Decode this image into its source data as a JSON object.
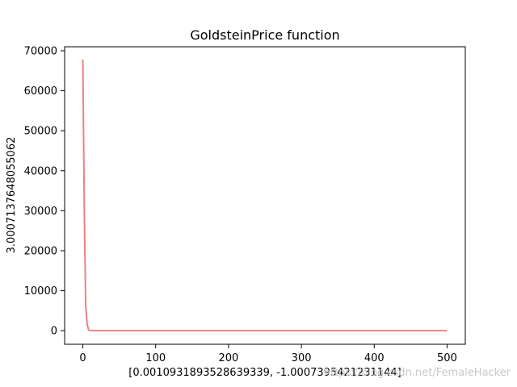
{
  "chart_data": {
    "type": "line",
    "title": "GoldsteinPrice function",
    "xlabel": "[0.0010931893528639339, -1.0007395421231144]",
    "ylabel": "3.0007137648055062",
    "xlim": [
      -25,
      525
    ],
    "ylim": [
      -3400,
      71000
    ],
    "x_ticks": [
      0,
      100,
      200,
      300,
      400,
      500
    ],
    "y_ticks": [
      0,
      10000,
      20000,
      30000,
      40000,
      50000,
      60000,
      70000
    ],
    "grid": false,
    "series": [
      {
        "color": "#f08080",
        "x": [
          0,
          2,
          4,
          6,
          8,
          10,
          20,
          50,
          100,
          200,
          300,
          400,
          500
        ],
        "y": [
          67800,
          30000,
          6000,
          1500,
          200,
          20,
          5,
          3,
          3,
          3,
          3,
          3,
          3
        ]
      }
    ]
  },
  "watermark": {
    "text": "https://blog.csdn.net/FemaleHacker"
  }
}
